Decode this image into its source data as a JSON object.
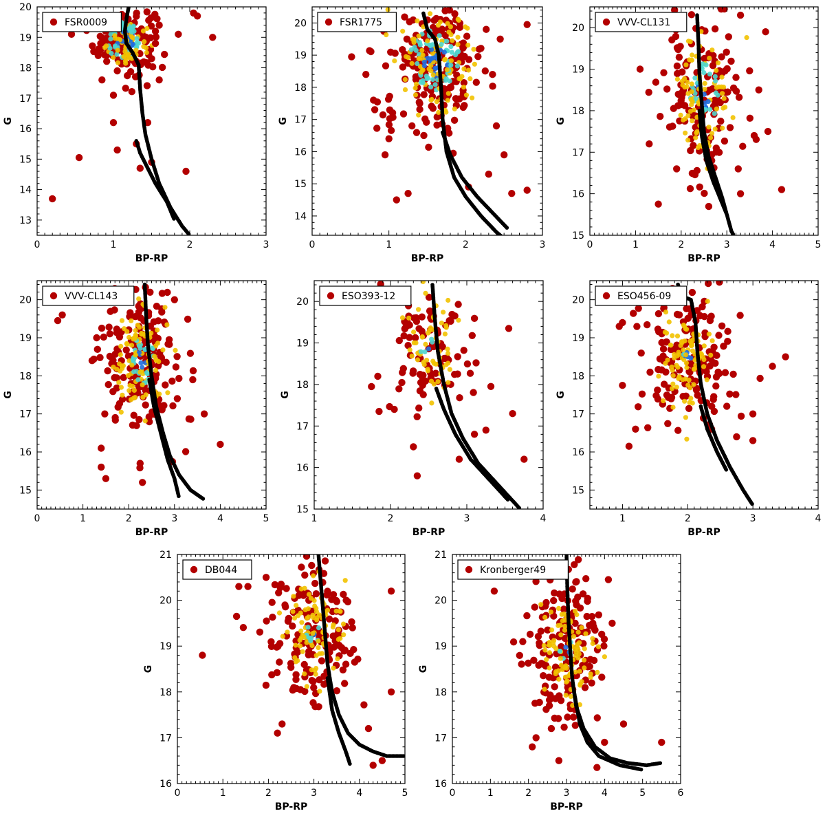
{
  "figure_title": "",
  "colors": {
    "point": "#b30000",
    "point_dense1": "#f2c200",
    "point_dense2": "#4fd6cf",
    "point_dense3": "#1f6fe0",
    "isochrone": "#000000"
  },
  "chart_data": [
    {
      "type": "scatter",
      "title": "FSR0009",
      "xlabel": "BP-RP",
      "ylabel": "G",
      "xlim": [
        0,
        3
      ],
      "ylim": [
        20,
        12.5
      ],
      "xticks": [
        0,
        1,
        2,
        3
      ],
      "yticks": [
        13,
        14,
        15,
        16,
        17,
        18,
        19,
        20
      ],
      "legend": "FSR0009",
      "isochrone": [
        [
          1.2,
          20.0
        ],
        [
          1.17,
          19.6
        ],
        [
          1.15,
          19.2
        ],
        [
          1.17,
          18.8
        ],
        [
          1.25,
          18.5
        ],
        [
          1.33,
          18.1
        ],
        [
          1.35,
          17.3
        ],
        [
          1.38,
          16.5
        ],
        [
          1.42,
          15.8
        ],
        [
          1.5,
          15.0
        ],
        [
          1.6,
          14.2
        ],
        [
          1.75,
          13.4
        ],
        [
          1.9,
          12.8
        ],
        [
          2.0,
          12.5
        ]
      ],
      "isochrone2": [
        [
          1.3,
          15.6
        ],
        [
          1.35,
          15.2
        ],
        [
          1.55,
          14.2
        ],
        [
          1.7,
          13.6
        ],
        [
          1.8,
          13.0
        ]
      ],
      "stars": [
        [
          0.2,
          13.7
        ],
        [
          0.55,
          15.05
        ],
        [
          1.0,
          16.2
        ],
        [
          1.05,
          15.3
        ],
        [
          1.0,
          17.1
        ],
        [
          1.3,
          15.5
        ],
        [
          1.35,
          14.7
        ],
        [
          1.5,
          14.9
        ],
        [
          1.95,
          14.6
        ],
        [
          1.85,
          19.1
        ],
        [
          2.3,
          19.0
        ],
        [
          2.05,
          19.8
        ],
        [
          2.1,
          19.7
        ],
        [
          0.85,
          17.6
        ],
        [
          0.8,
          18.4
        ],
        [
          1.5,
          18.3
        ],
        [
          1.55,
          18.8
        ],
        [
          1.6,
          19.4
        ],
        [
          0.9,
          19.2
        ],
        [
          1.05,
          17.9
        ],
        [
          1.45,
          16.2
        ],
        [
          1.55,
          19.2
        ],
        [
          1.6,
          17.6
        ]
      ],
      "dense": {
        "cx": 1.15,
        "cy": 18.9,
        "sx": 0.2,
        "sy": 0.55,
        "n": 130,
        "core": 0.45
      }
    },
    {
      "type": "scatter",
      "title": "FSR1775",
      "xlabel": "BP-RP",
      "ylabel": "G",
      "xlim": [
        0,
        3
      ],
      "ylim": [
        20.5,
        13.4
      ],
      "xticks": [
        0,
        1,
        2,
        3
      ],
      "yticks": [
        14,
        15,
        16,
        17,
        18,
        19,
        20
      ],
      "legend": "FSR1775",
      "isochrone": [
        [
          1.45,
          20.3
        ],
        [
          1.5,
          19.8
        ],
        [
          1.6,
          19.5
        ],
        [
          1.65,
          19.0
        ],
        [
          1.68,
          18.0
        ],
        [
          1.7,
          17.0
        ],
        [
          1.75,
          16.0
        ],
        [
          1.85,
          15.2
        ],
        [
          2.0,
          14.6
        ],
        [
          2.2,
          14.0
        ],
        [
          2.4,
          13.5
        ],
        [
          2.5,
          13.3
        ]
      ],
      "isochrone2": [
        [
          1.7,
          16.6
        ],
        [
          1.8,
          15.9
        ],
        [
          1.95,
          15.2
        ],
        [
          2.15,
          14.6
        ],
        [
          2.35,
          14.1
        ],
        [
          2.55,
          13.6
        ]
      ],
      "stars": [
        [
          1.1,
          14.5
        ],
        [
          1.25,
          14.7
        ],
        [
          2.6,
          14.7
        ],
        [
          2.8,
          14.8
        ],
        [
          0.55,
          19.95
        ],
        [
          0.6,
          19.95
        ],
        [
          2.8,
          19.95
        ],
        [
          0.7,
          18.4
        ],
        [
          0.8,
          17.6
        ],
        [
          0.95,
          15.9
        ],
        [
          1.0,
          16.4
        ],
        [
          2.3,
          15.3
        ],
        [
          2.5,
          15.9
        ],
        [
          1.3,
          16.8
        ],
        [
          2.4,
          16.8
        ],
        [
          2.45,
          19.5
        ],
        [
          2.35,
          18.4
        ]
      ],
      "dense": {
        "cx": 1.6,
        "cy": 18.8,
        "sx": 0.35,
        "sy": 1.1,
        "n": 200,
        "core": 0.35
      }
    },
    {
      "type": "scatter",
      "title": "VVV-CL131",
      "xlabel": "BP-RP",
      "ylabel": "G",
      "xlim": [
        0,
        5
      ],
      "ylim": [
        20.5,
        15
      ],
      "xticks": [
        0,
        1,
        2,
        3,
        4,
        5
      ],
      "yticks": [
        15,
        16,
        17,
        18,
        19,
        20
      ],
      "legend": "VVV-CL131",
      "isochrone": [
        [
          2.35,
          20.3
        ],
        [
          2.38,
          19.6
        ],
        [
          2.4,
          18.9
        ],
        [
          2.45,
          18.2
        ],
        [
          2.5,
          17.5
        ],
        [
          2.6,
          16.9
        ],
        [
          2.75,
          16.4
        ],
        [
          2.9,
          15.9
        ],
        [
          3.0,
          15.5
        ],
        [
          3.1,
          15.1
        ],
        [
          3.15,
          15.0
        ]
      ],
      "isochrone2": [
        [
          2.4,
          18.0
        ],
        [
          2.45,
          17.4
        ],
        [
          2.55,
          16.8
        ],
        [
          2.7,
          16.3
        ],
        [
          2.85,
          15.9
        ],
        [
          3.0,
          15.5
        ]
      ],
      "stars": [
        [
          1.5,
          15.75
        ],
        [
          4.2,
          16.1
        ],
        [
          1.05,
          20.15
        ],
        [
          1.2,
          20.15
        ],
        [
          3.85,
          19.9
        ],
        [
          3.3,
          20.3
        ],
        [
          1.1,
          19.0
        ],
        [
          1.3,
          17.2
        ],
        [
          1.9,
          16.6
        ],
        [
          3.9,
          17.5
        ],
        [
          3.6,
          17.4
        ],
        [
          3.7,
          18.5
        ],
        [
          3.2,
          18.8
        ],
        [
          3.25,
          16.6
        ],
        [
          3.3,
          16.0
        ]
      ],
      "dense": {
        "cx": 2.5,
        "cy": 18.4,
        "sx": 0.45,
        "sy": 1.1,
        "n": 150,
        "core": 0.25
      }
    },
    {
      "type": "scatter",
      "title": "VVV-CL143",
      "xlabel": "BP-RP",
      "ylabel": "G",
      "xlim": [
        0,
        5
      ],
      "ylim": [
        20.5,
        14.5
      ],
      "xticks": [
        0,
        1,
        2,
        3,
        4,
        5
      ],
      "yticks": [
        15,
        16,
        17,
        18,
        19,
        20
      ],
      "legend": "VVV-CL143",
      "isochrone": [
        [
          2.35,
          20.4
        ],
        [
          2.38,
          19.6
        ],
        [
          2.42,
          18.8
        ],
        [
          2.5,
          18.0
        ],
        [
          2.6,
          17.2
        ],
        [
          2.75,
          16.5
        ],
        [
          2.9,
          15.9
        ],
        [
          3.1,
          15.4
        ],
        [
          3.35,
          15.0
        ],
        [
          3.65,
          14.75
        ]
      ],
      "isochrone2": [
        [
          2.45,
          17.9
        ],
        [
          2.55,
          17.2
        ],
        [
          2.7,
          16.5
        ],
        [
          2.85,
          15.8
        ],
        [
          3.0,
          15.3
        ],
        [
          3.1,
          14.8
        ]
      ],
      "stars": [
        [
          0.45,
          19.45
        ],
        [
          0.55,
          19.6
        ],
        [
          1.4,
          15.6
        ],
        [
          1.5,
          15.3
        ],
        [
          1.4,
          16.1
        ],
        [
          4.0,
          16.2
        ],
        [
          3.65,
          17.0
        ],
        [
          3.4,
          17.9
        ],
        [
          1.3,
          19.0
        ],
        [
          1.2,
          18.4
        ],
        [
          3.0,
          20.0
        ],
        [
          2.25,
          15.7
        ],
        [
          2.3,
          15.2
        ]
      ],
      "dense": {
        "cx": 2.3,
        "cy": 18.4,
        "sx": 0.45,
        "sy": 1.1,
        "n": 170,
        "core": 0.22
      }
    },
    {
      "type": "scatter",
      "title": "ESO393-12",
      "xlabel": "BP-RP",
      "ylabel": "G",
      "xlim": [
        1,
        4
      ],
      "ylim": [
        20.5,
        15
      ],
      "xticks": [
        1,
        2,
        3,
        4
      ],
      "yticks": [
        15,
        16,
        17,
        18,
        19,
        20
      ],
      "legend": "ESO393-12",
      "isochrone": [
        [
          2.55,
          20.4
        ],
        [
          2.58,
          19.6
        ],
        [
          2.62,
          18.8
        ],
        [
          2.7,
          18.0
        ],
        [
          2.8,
          17.3
        ],
        [
          2.95,
          16.7
        ],
        [
          3.15,
          16.1
        ],
        [
          3.4,
          15.6
        ],
        [
          3.6,
          15.2
        ],
        [
          3.7,
          15.0
        ]
      ],
      "isochrone2": [
        [
          2.6,
          17.9
        ],
        [
          2.7,
          17.4
        ],
        [
          2.85,
          16.8
        ],
        [
          3.05,
          16.2
        ],
        [
          3.3,
          15.7
        ],
        [
          3.55,
          15.2
        ]
      ],
      "stars": [
        [
          1.3,
          20.25
        ],
        [
          1.55,
          20.15
        ],
        [
          1.95,
          20.25
        ],
        [
          2.35,
          15.8
        ],
        [
          3.75,
          16.2
        ],
        [
          3.6,
          17.3
        ],
        [
          3.55,
          19.35
        ],
        [
          1.75,
          17.95
        ],
        [
          1.85,
          17.35
        ],
        [
          2.05,
          17.4
        ],
        [
          2.3,
          16.5
        ],
        [
          2.9,
          16.2
        ],
        [
          3.1,
          16.8
        ],
        [
          3.25,
          16.9
        ]
      ],
      "dense": {
        "cx": 2.5,
        "cy": 18.9,
        "sx": 0.3,
        "sy": 0.8,
        "n": 95,
        "core": 0.15
      }
    },
    {
      "type": "scatter",
      "title": "ESO456-09",
      "xlabel": "BP-RP",
      "ylabel": "G",
      "xlim": [
        0.5,
        4
      ],
      "ylim": [
        20.5,
        14.5
      ],
      "xticks": [
        1,
        2,
        3,
        4
      ],
      "yticks": [
        15,
        16,
        17,
        18,
        19,
        20
      ],
      "legend": "ESO456-09",
      "isochrone": [
        [
          1.85,
          20.4
        ],
        [
          1.9,
          20.1
        ],
        [
          2.05,
          20.0
        ],
        [
          2.12,
          19.4
        ],
        [
          2.15,
          18.6
        ],
        [
          2.2,
          17.8
        ],
        [
          2.3,
          17.0
        ],
        [
          2.45,
          16.3
        ],
        [
          2.65,
          15.6
        ],
        [
          2.85,
          15.0
        ],
        [
          3.0,
          14.6
        ]
      ],
      "isochrone2": [
        [
          2.2,
          17.2
        ],
        [
          2.3,
          16.6
        ],
        [
          2.45,
          16.0
        ],
        [
          2.6,
          15.5
        ]
      ],
      "stars": [
        [
          1.0,
          17.75
        ],
        [
          0.95,
          19.3
        ],
        [
          1.0,
          19.4
        ],
        [
          3.3,
          18.25
        ],
        [
          3.5,
          18.5
        ],
        [
          3.0,
          16.3
        ],
        [
          3.0,
          17.0
        ],
        [
          1.1,
          16.15
        ],
        [
          1.2,
          16.6
        ],
        [
          2.6,
          17.2
        ],
        [
          2.75,
          16.4
        ]
      ],
      "dense": {
        "cx": 2.0,
        "cy": 18.5,
        "sx": 0.35,
        "sy": 1.0,
        "n": 150,
        "core": 0.12
      }
    },
    {
      "type": "scatter",
      "title": "DB044",
      "xlabel": "BP-RP",
      "ylabel": "G",
      "xlim": [
        0,
        5
      ],
      "ylim": [
        21,
        16
      ],
      "xticks": [
        0,
        1,
        2,
        3,
        4,
        5
      ],
      "yticks": [
        16,
        17,
        18,
        19,
        20,
        21
      ],
      "legend": "DB044",
      "isochrone": [
        [
          3.1,
          21.0
        ],
        [
          3.15,
          20.4
        ],
        [
          3.2,
          19.8
        ],
        [
          3.25,
          19.2
        ],
        [
          3.3,
          18.6
        ],
        [
          3.4,
          18.0
        ],
        [
          3.55,
          17.5
        ],
        [
          3.75,
          17.1
        ],
        [
          4.0,
          16.85
        ],
        [
          4.3,
          16.7
        ],
        [
          4.6,
          16.6
        ],
        [
          5.0,
          16.6
        ]
      ],
      "isochrone2": [
        [
          3.3,
          18.3
        ],
        [
          3.4,
          17.6
        ],
        [
          3.55,
          17.1
        ],
        [
          3.7,
          16.7
        ],
        [
          3.8,
          16.4
        ]
      ],
      "stars": [
        [
          0.55,
          18.8
        ],
        [
          1.3,
          19.65
        ],
        [
          1.35,
          20.3
        ],
        [
          1.55,
          20.3
        ],
        [
          1.95,
          20.5
        ],
        [
          4.7,
          20.2
        ],
        [
          4.7,
          18.0
        ],
        [
          2.2,
          17.1
        ],
        [
          2.3,
          17.3
        ],
        [
          4.2,
          17.2
        ],
        [
          4.3,
          16.4
        ],
        [
          4.5,
          16.5
        ]
      ],
      "dense": {
        "cx": 3.0,
        "cy": 19.3,
        "sx": 0.55,
        "sy": 0.85,
        "n": 160,
        "core": 0.12
      }
    },
    {
      "type": "scatter",
      "title": "Kronberger49",
      "xlabel": "BP-RP",
      "ylabel": "G",
      "xlim": [
        0,
        6
      ],
      "ylim": [
        21,
        16
      ],
      "xticks": [
        0,
        1,
        2,
        3,
        4,
        5,
        6
      ],
      "yticks": [
        16,
        17,
        18,
        19,
        20,
        21
      ],
      "legend": "Kronberger49",
      "isochrone": [
        [
          3.0,
          21.0
        ],
        [
          3.02,
          20.3
        ],
        [
          3.05,
          19.6
        ],
        [
          3.1,
          18.9
        ],
        [
          3.15,
          18.3
        ],
        [
          3.25,
          17.7
        ],
        [
          3.45,
          17.2
        ],
        [
          3.75,
          16.8
        ],
        [
          4.15,
          16.55
        ],
        [
          4.6,
          16.45
        ],
        [
          5.1,
          16.4
        ],
        [
          5.5,
          16.45
        ]
      ],
      "isochrone2": [
        [
          3.2,
          18.0
        ],
        [
          3.35,
          17.3
        ],
        [
          3.55,
          16.9
        ],
        [
          3.85,
          16.6
        ],
        [
          4.4,
          16.4
        ],
        [
          5.0,
          16.3
        ]
      ],
      "stars": [
        [
          1.1,
          20.2
        ],
        [
          2.1,
          16.8
        ],
        [
          2.2,
          17.0
        ],
        [
          2.8,
          16.5
        ],
        [
          3.8,
          16.35
        ],
        [
          5.5,
          16.9
        ],
        [
          4.5,
          17.3
        ],
        [
          4.1,
          20.45
        ],
        [
          4.2,
          19.5
        ],
        [
          4.0,
          16.9
        ],
        [
          2.55,
          17.7
        ],
        [
          2.6,
          17.2
        ]
      ],
      "dense": {
        "cx": 3.0,
        "cy": 18.9,
        "sx": 0.55,
        "sy": 0.9,
        "n": 160,
        "core": 0.12
      }
    }
  ]
}
